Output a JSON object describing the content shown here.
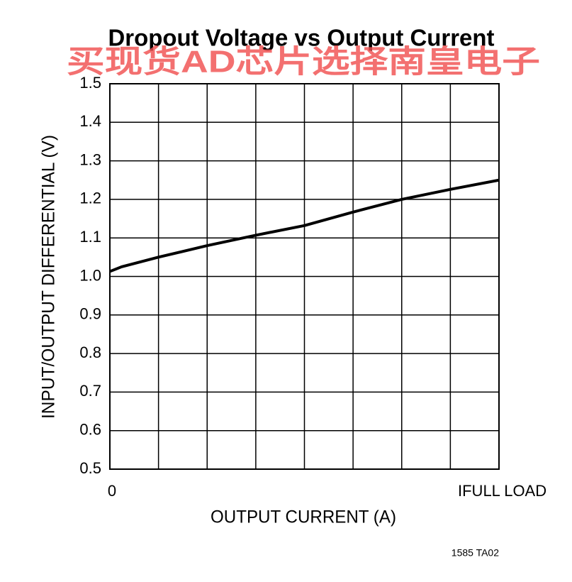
{
  "chart_data": {
    "type": "line",
    "title": "Dropout Voltage vs Output Current",
    "watermark": "买现货AD芯片选择南皇电子",
    "xlabel": "OUTPUT CURRENT (A)",
    "ylabel": "INPUT/OUTPUT DIFFERENTIAL (V)",
    "footnote": "1585 TA02",
    "x": [
      0,
      0.03,
      0.125,
      0.25,
      0.375,
      0.5,
      0.625,
      0.75,
      0.875,
      1
    ],
    "series": [
      {
        "color": "#000000",
        "values": [
          1.013,
          1.025,
          1.05,
          1.08,
          1.107,
          1.132,
          1.167,
          1.2,
          1.226,
          1.25
        ]
      }
    ],
    "xlim": [
      0,
      1
    ],
    "xticks": [
      0,
      {
        "value": 1,
        "label": "IFULL LOAD"
      }
    ],
    "xgrid": [
      0.125,
      0.25,
      0.375,
      0.5,
      0.625,
      0.75,
      0.875
    ],
    "ylim": [
      0.5,
      1.5
    ],
    "yticks": [
      {
        "value": 0.5,
        "label": "0.5"
      },
      0.6,
      0.7,
      0.8,
      0.9,
      {
        "value": 1,
        "label": "1.0"
      },
      1.1,
      1.2,
      1.3,
      1.4,
      1.5
    ],
    "grid": true
  }
}
